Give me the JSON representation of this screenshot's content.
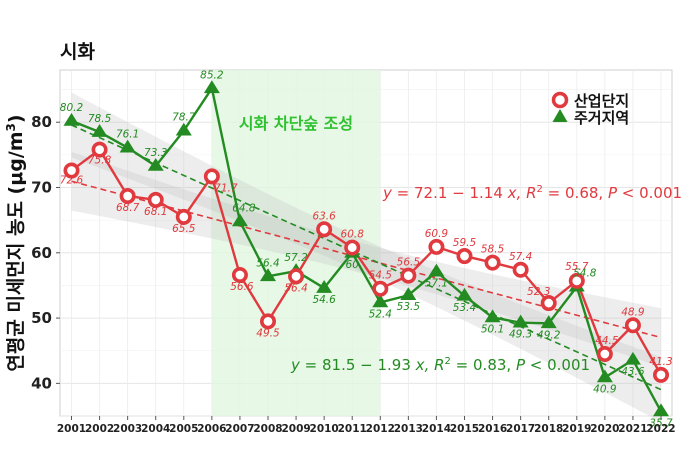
{
  "chart_data": {
    "type": "line",
    "title": "시화",
    "ylabel": "연평균 미세먼지 농도 (μg/m³)",
    "ylabel_parts": {
      "main": "연평균 미세먼지 농도 (μg/m",
      "sup": "3",
      "close": ")"
    },
    "xlabel": "",
    "ylim": [
      35,
      88
    ],
    "yticks": [
      40,
      50,
      60,
      70,
      80
    ],
    "x": [
      "2001",
      "2002",
      "2003",
      "2004",
      "2005",
      "2006",
      "2007",
      "2008",
      "2009",
      "2010",
      "2011",
      "2012",
      "2013",
      "2014",
      "2015",
      "2016",
      "2017",
      "2018",
      "2019",
      "2020",
      "2021",
      "2022"
    ],
    "series": [
      {
        "name": "산업단지",
        "color": "#e0393e",
        "marker": "circle",
        "values": [
          72.6,
          75.8,
          68.7,
          68.1,
          65.5,
          71.7,
          56.6,
          49.5,
          56.4,
          63.6,
          60.8,
          54.5,
          56.5,
          60.9,
          59.5,
          58.5,
          57.4,
          52.3,
          55.7,
          44.5,
          48.9,
          41.3
        ],
        "trend": {
          "intercept": 72.1,
          "slope": -1.14
        },
        "equation": {
          "y": "y",
          "eq": " = 72.1 − 1.14 ",
          "x": "x",
          "r": ", R",
          "r2": "2",
          "rv": " = 0.68, ",
          "p": "P",
          "pv": " < 0.001"
        }
      },
      {
        "name": "주거지역",
        "color": "#238b22",
        "marker": "triangle",
        "values": [
          80.2,
          78.5,
          76.1,
          73.3,
          78.7,
          85.2,
          64.8,
          56.4,
          57.2,
          54.6,
          60.0,
          52.4,
          53.5,
          57.1,
          53.4,
          50.1,
          49.3,
          49.2,
          54.8,
          40.9,
          43.6,
          35.7
        ],
        "labels": [
          "80.2",
          "78.5",
          "76.1",
          "73.3",
          "78.7",
          "85.2",
          "64.8",
          "56.4",
          "57.2",
          "54.6",
          "60",
          "52.4",
          "53.5",
          "57.1",
          "53.4",
          "50.1",
          "49.3",
          "49.2",
          "54.8",
          "40.9",
          "43.6",
          "35.7"
        ],
        "trend": {
          "intercept": 81.5,
          "slope": -1.93
        },
        "equation": {
          "y": "y",
          "eq": " = 81.5 − 1.93 ",
          "x": "x",
          "r": ", R",
          "r2": "2",
          "rv": " = 0.83, ",
          "p": "P",
          "pv": " < 0.001"
        }
      }
    ],
    "annotation_band": {
      "from": "2006",
      "to": "2012",
      "label": "시화 차단숲 조성",
      "color": "#2fc12f"
    },
    "grid": true,
    "legend_position": "top-right"
  }
}
